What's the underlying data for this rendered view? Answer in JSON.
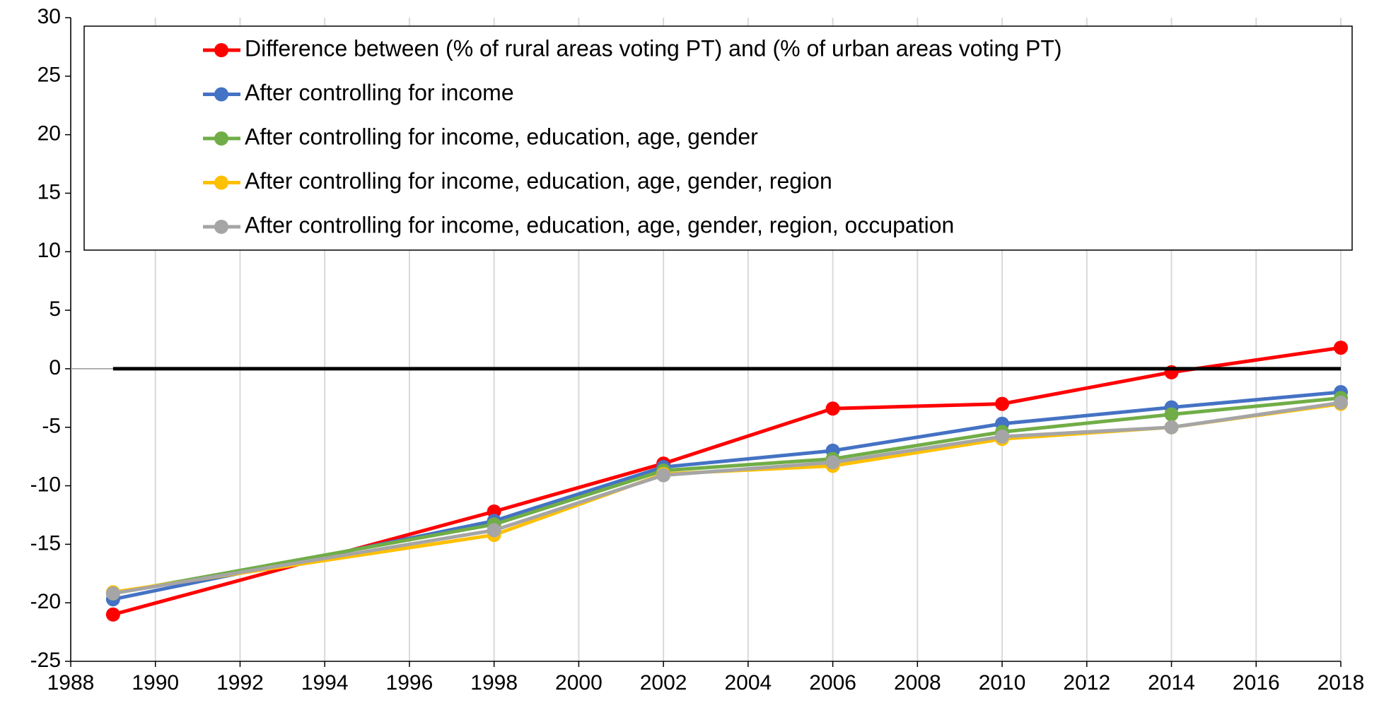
{
  "chart_data": {
    "type": "line",
    "x": [
      1989,
      1998,
      2002,
      2006,
      2010,
      2014,
      2018
    ],
    "series": [
      {
        "name": "Difference between (% of rural areas voting PT) and (% of urban areas voting PT)",
        "color": "#ff0000",
        "values": [
          -21,
          -12.2,
          -8.1,
          -3.4,
          -3.0,
          -0.3,
          1.8
        ]
      },
      {
        "name": "After controlling for income",
        "color": "#4472c4",
        "values": [
          -19.7,
          -13.0,
          -8.4,
          -7.0,
          -4.7,
          -3.3,
          -2.0
        ]
      },
      {
        "name": "After controlling for income, education, age, gender",
        "color": "#70ad47",
        "values": [
          -19.2,
          -13.3,
          -8.7,
          -7.7,
          -5.4,
          -3.9,
          -2.5
        ]
      },
      {
        "name": "After controlling for income, education, age, gender, region",
        "color": "#ffc000",
        "values": [
          -19.1,
          -14.2,
          -9.0,
          -8.3,
          -6.0,
          -5.0,
          -3.0
        ]
      },
      {
        "name": "After controlling for income, education, age, gender, region, occupation",
        "color": "#a5a5a5",
        "values": [
          -19.2,
          -13.8,
          -9.1,
          -8.0,
          -5.8,
          -5.0,
          -2.9
        ]
      }
    ],
    "xlim": [
      1988,
      2018
    ],
    "xticks": [
      1988,
      1990,
      1992,
      1994,
      1996,
      1998,
      2000,
      2002,
      2004,
      2006,
      2008,
      2010,
      2012,
      2014,
      2016,
      2018
    ],
    "ylim": [
      -25,
      30
    ],
    "yticks": [
      -25,
      -20,
      -15,
      -10,
      -5,
      0,
      5,
      10,
      15,
      20,
      25,
      30
    ],
    "grid": "x",
    "legend": "top",
    "zero_line": {
      "y": 0,
      "x": [
        1989,
        2018
      ]
    }
  }
}
